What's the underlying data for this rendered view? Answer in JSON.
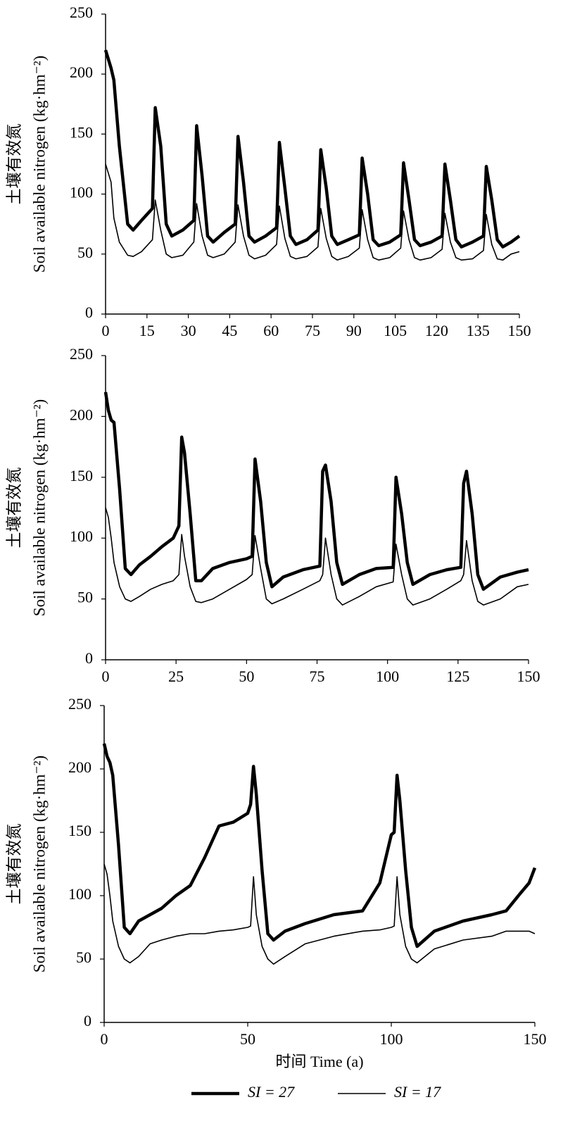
{
  "chart_data": [
    {
      "type": "line",
      "y_label_cn": "土壤有效氮",
      "y_label": "Soil available nitrogen (kg·hm⁻²)",
      "x": [
        0,
        2,
        3,
        5,
        8,
        10,
        13,
        17,
        18,
        20,
        22,
        24,
        28,
        32,
        33,
        35,
        37,
        39,
        43,
        47,
        48,
        50,
        52,
        54,
        58,
        62,
        63,
        65,
        67,
        69,
        73,
        77,
        78,
        80,
        82,
        84,
        88,
        92,
        93,
        95,
        97,
        99,
        103,
        107,
        108,
        110,
        112,
        114,
        118,
        122,
        123,
        125,
        127,
        129,
        133,
        137,
        138,
        140,
        142,
        144,
        147,
        150
      ],
      "series": [
        {
          "color": "#000000",
          "values": [
            220,
            205,
            195,
            140,
            75,
            70,
            78,
            88,
            172,
            140,
            75,
            65,
            70,
            78,
            157,
            115,
            65,
            60,
            68,
            75,
            148,
            110,
            65,
            60,
            65,
            72,
            143,
            105,
            65,
            58,
            62,
            70,
            137,
            105,
            65,
            58,
            62,
            66,
            130,
            100,
            62,
            57,
            60,
            66,
            126,
            95,
            62,
            57,
            60,
            65,
            125,
            95,
            62,
            56,
            60,
            65,
            123,
            95,
            62,
            56,
            60,
            65
          ]
        },
        {
          "color": "#000000",
          "values": [
            125,
            110,
            80,
            60,
            49,
            48,
            52,
            62,
            95,
            70,
            50,
            47,
            49,
            60,
            92,
            65,
            49,
            47,
            50,
            60,
            91,
            65,
            49,
            46,
            49,
            58,
            90,
            63,
            48,
            46,
            48,
            56,
            88,
            63,
            48,
            45,
            48,
            55,
            87,
            62,
            47,
            45,
            47,
            55,
            86,
            62,
            47,
            45,
            47,
            54,
            84,
            60,
            47,
            45,
            46,
            53,
            83,
            58,
            46,
            45,
            50,
            52
          ]
        }
      ],
      "xlim": [
        0,
        150
      ],
      "ylim": [
        0,
        250
      ],
      "xticks": [
        0,
        15,
        30,
        45,
        60,
        75,
        90,
        105,
        120,
        135,
        150
      ],
      "yticks": [
        0,
        50,
        100,
        150,
        200,
        250
      ]
    },
    {
      "type": "line",
      "y_label_cn": "土壤有效氮",
      "y_label": "Soil available nitrogen (kg·hm⁻²)",
      "x": [
        0,
        1,
        2,
        3,
        5,
        7,
        9,
        12,
        16,
        20,
        24,
        26,
        27,
        28,
        30,
        32,
        34,
        38,
        44,
        50,
        52,
        53,
        55,
        57,
        59,
        63,
        70,
        76,
        77,
        78,
        80,
        82,
        84,
        90,
        96,
        102,
        103,
        105,
        107,
        109,
        115,
        121,
        126,
        127,
        128,
        130,
        132,
        134,
        140,
        146,
        150
      ],
      "series": [
        {
          "color": "#000000",
          "values": [
            220,
            205,
            197,
            195,
            140,
            75,
            70,
            78,
            85,
            93,
            100,
            110,
            183,
            170,
            120,
            65,
            65,
            75,
            80,
            83,
            85,
            165,
            130,
            80,
            60,
            68,
            74,
            77,
            155,
            160,
            130,
            80,
            62,
            70,
            75,
            76,
            150,
            120,
            80,
            62,
            70,
            74,
            76,
            145,
            155,
            120,
            70,
            58,
            68,
            72,
            74
          ]
        },
        {
          "color": "#000000",
          "values": [
            125,
            117,
            100,
            80,
            60,
            50,
            48,
            52,
            58,
            62,
            65,
            70,
            103,
            85,
            60,
            48,
            47,
            50,
            58,
            66,
            70,
            102,
            75,
            50,
            46,
            50,
            58,
            65,
            70,
            100,
            70,
            50,
            45,
            52,
            60,
            64,
            95,
            70,
            50,
            45,
            50,
            58,
            65,
            70,
            98,
            65,
            48,
            45,
            50,
            60,
            62
          ]
        }
      ],
      "xlim": [
        0,
        150
      ],
      "ylim": [
        0,
        250
      ],
      "xticks": [
        0,
        25,
        50,
        75,
        100,
        125,
        150
      ],
      "yticks": [
        0,
        50,
        100,
        150,
        200,
        250
      ]
    },
    {
      "type": "line",
      "y_label_cn": "土壤有效氮",
      "y_label": "Soil available nitrogen (kg·hm⁻²)",
      "x_label": "时间  Time (a)",
      "x": [
        0,
        1,
        2,
        3,
        5,
        7,
        9,
        12,
        16,
        20,
        25,
        30,
        35,
        40,
        45,
        50,
        51,
        52,
        53,
        55,
        57,
        59,
        63,
        70,
        80,
        90,
        96,
        100,
        101,
        102,
        103,
        105,
        107,
        109,
        115,
        125,
        135,
        140,
        145,
        148,
        150
      ],
      "series": [
        {
          "name": "SI = 27",
          "color": "#000000",
          "values": [
            220,
            210,
            205,
            195,
            140,
            75,
            70,
            80,
            85,
            90,
            100,
            108,
            130,
            155,
            158,
            165,
            172,
            202,
            180,
            120,
            70,
            65,
            72,
            78,
            85,
            88,
            110,
            148,
            150,
            195,
            175,
            120,
            75,
            60,
            72,
            80,
            85,
            88,
            102,
            110,
            122
          ]
        },
        {
          "name": "SI = 17",
          "color": "#000000",
          "values": [
            125,
            117,
            100,
            80,
            60,
            50,
            47,
            52,
            62,
            65,
            68,
            70,
            70,
            72,
            73,
            75,
            76,
            115,
            85,
            60,
            50,
            46,
            52,
            62,
            68,
            72,
            73,
            75,
            76,
            115,
            85,
            60,
            50,
            47,
            58,
            65,
            68,
            72,
            72,
            72,
            70
          ]
        }
      ],
      "xlim": [
        0,
        150
      ],
      "ylim": [
        0,
        250
      ],
      "xticks": [
        0,
        50,
        100,
        150
      ],
      "yticks": [
        0,
        50,
        100,
        150,
        200,
        250
      ]
    }
  ]
}
